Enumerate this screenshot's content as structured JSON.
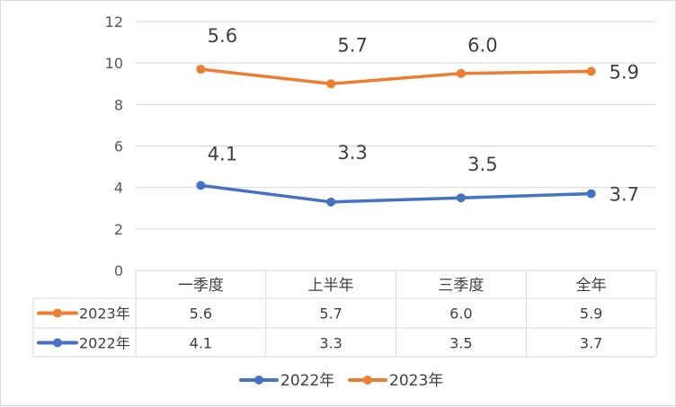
{
  "chart_data": {
    "type": "line",
    "title": "",
    "xlabel": "",
    "ylabel": "",
    "categories": [
      "一季度",
      "上半年",
      "三季度",
      "全年"
    ],
    "ylim": [
      0,
      12
    ],
    "yticks": [
      0,
      2,
      4,
      6,
      8,
      10,
      12
    ],
    "grid": true,
    "legend_position": "bottom",
    "data_table": true,
    "series": [
      {
        "name": "2023年",
        "color": "#ED7D31",
        "plotted": [
          9.7,
          9.0,
          9.5,
          9.6
        ],
        "labels": [
          "5.6",
          "5.7",
          "6.0",
          "5.9"
        ],
        "table_values": [
          "5.6",
          "5.7",
          "6.0",
          "5.9"
        ]
      },
      {
        "name": "2022年",
        "color": "#4472C4",
        "plotted": [
          4.1,
          3.3,
          3.5,
          3.7
        ],
        "labels": [
          "4.1",
          "3.3",
          "3.5",
          "3.7"
        ],
        "table_values": [
          "4.1",
          "3.3",
          "3.5",
          "3.7"
        ]
      }
    ],
    "legend_order": [
      "2022年",
      "2023年"
    ]
  }
}
